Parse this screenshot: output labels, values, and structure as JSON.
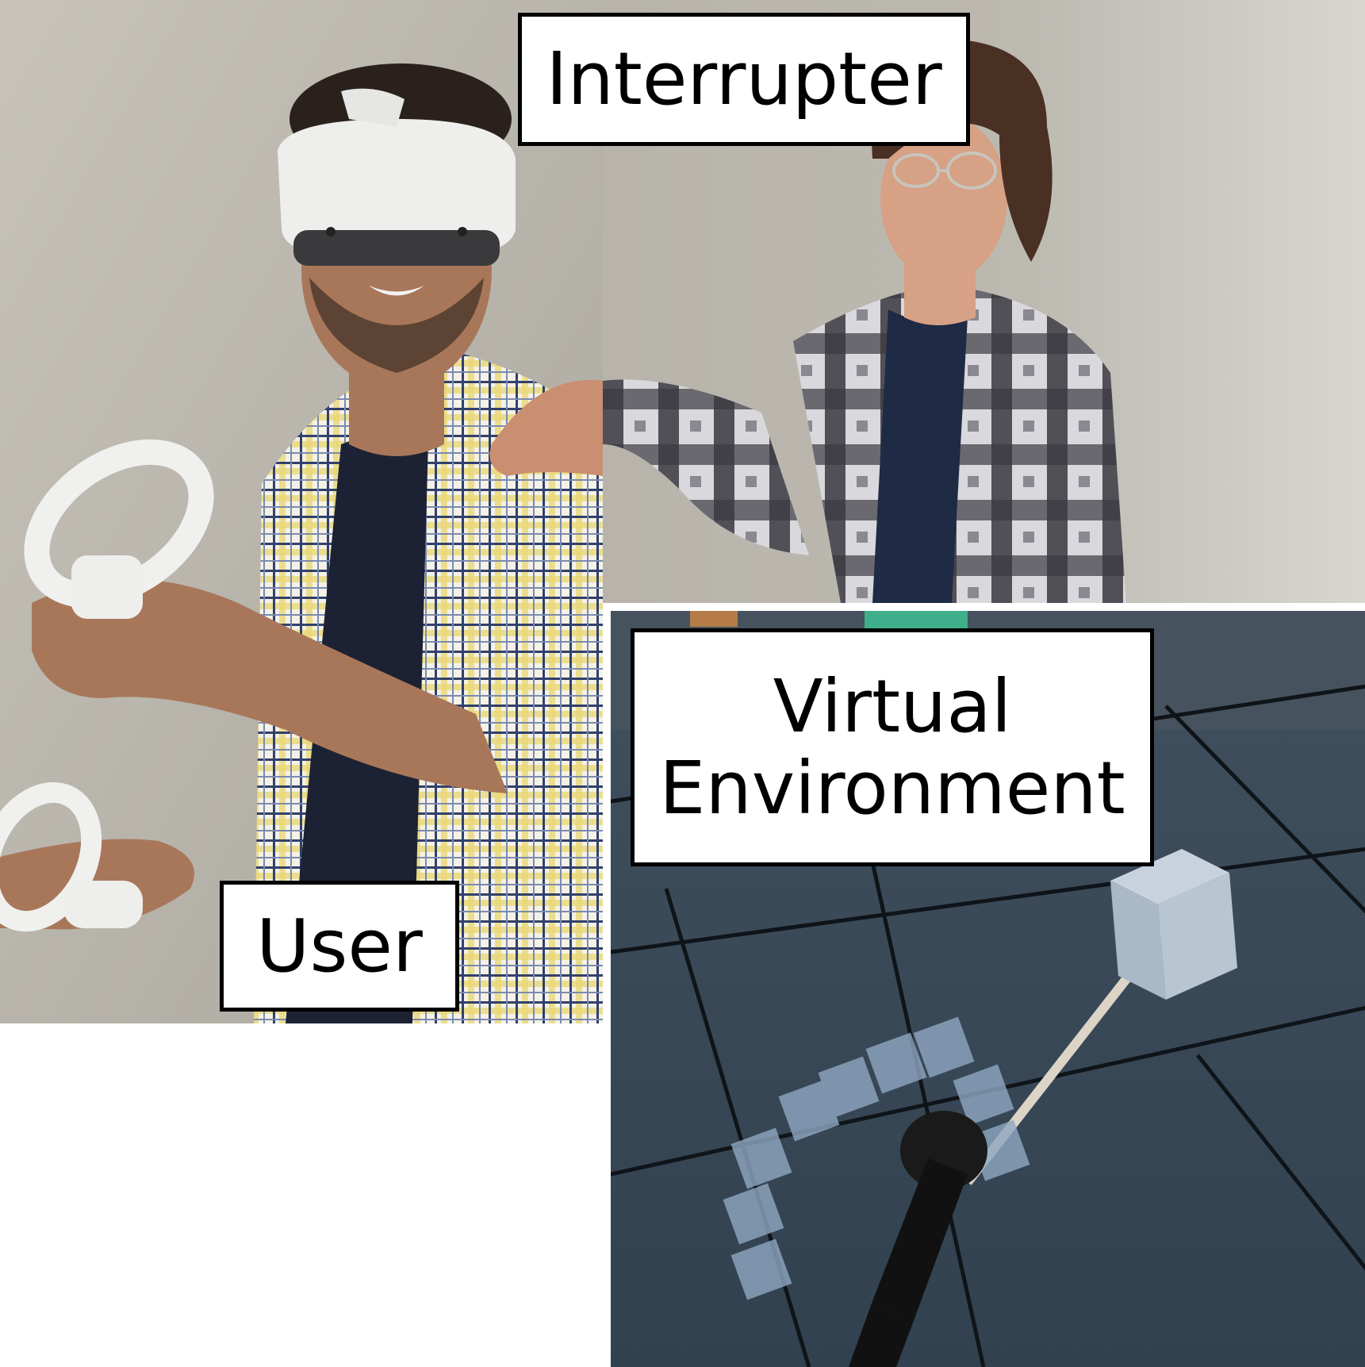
{
  "labels": {
    "interrupter": "Interrupter",
    "virtual_environment_line1": "Virtual",
    "virtual_environment_line2": "Environment",
    "user": "User"
  },
  "colors": {
    "wall": "#bdb9b0",
    "vr_background": "#3a4856",
    "label_background": "#ffffff",
    "label_border": "#000000"
  }
}
